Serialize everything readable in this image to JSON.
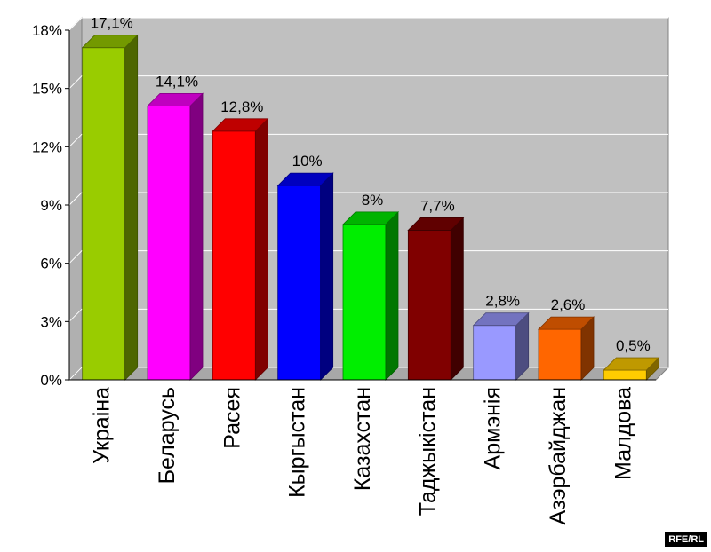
{
  "chart_data": {
    "type": "bar",
    "categories": [
      "Украіна",
      "Беларусь",
      "Расея",
      "Кыргыстан",
      "Казахстан",
      "Таджыкістан",
      "Армэнія",
      "Азэрбайджан",
      "Малдова"
    ],
    "values": [
      17.1,
      14.1,
      12.8,
      10,
      8,
      7.7,
      2.8,
      2.6,
      0.5
    ],
    "value_labels": [
      "17,1%",
      "14,1%",
      "12,8%",
      "10%",
      "8%",
      "7,7%",
      "2,8%",
      "2,6%",
      "0,5%"
    ],
    "colors": [
      "#99cc00",
      "#ff00ff",
      "#ff0000",
      "#0000ff",
      "#00ee00",
      "#800000",
      "#9999ff",
      "#ff6600",
      "#ffcc00"
    ],
    "yticks": [
      0,
      3,
      6,
      9,
      12,
      15,
      18
    ],
    "ytick_labels": [
      "0%",
      "3%",
      "6%",
      "9%",
      "12%",
      "15%",
      "18%"
    ],
    "ylim": [
      0,
      18
    ],
    "grid": true,
    "style": "3d-bar",
    "plot_background": "#c0c0c0"
  },
  "credit": "RFE/RL"
}
